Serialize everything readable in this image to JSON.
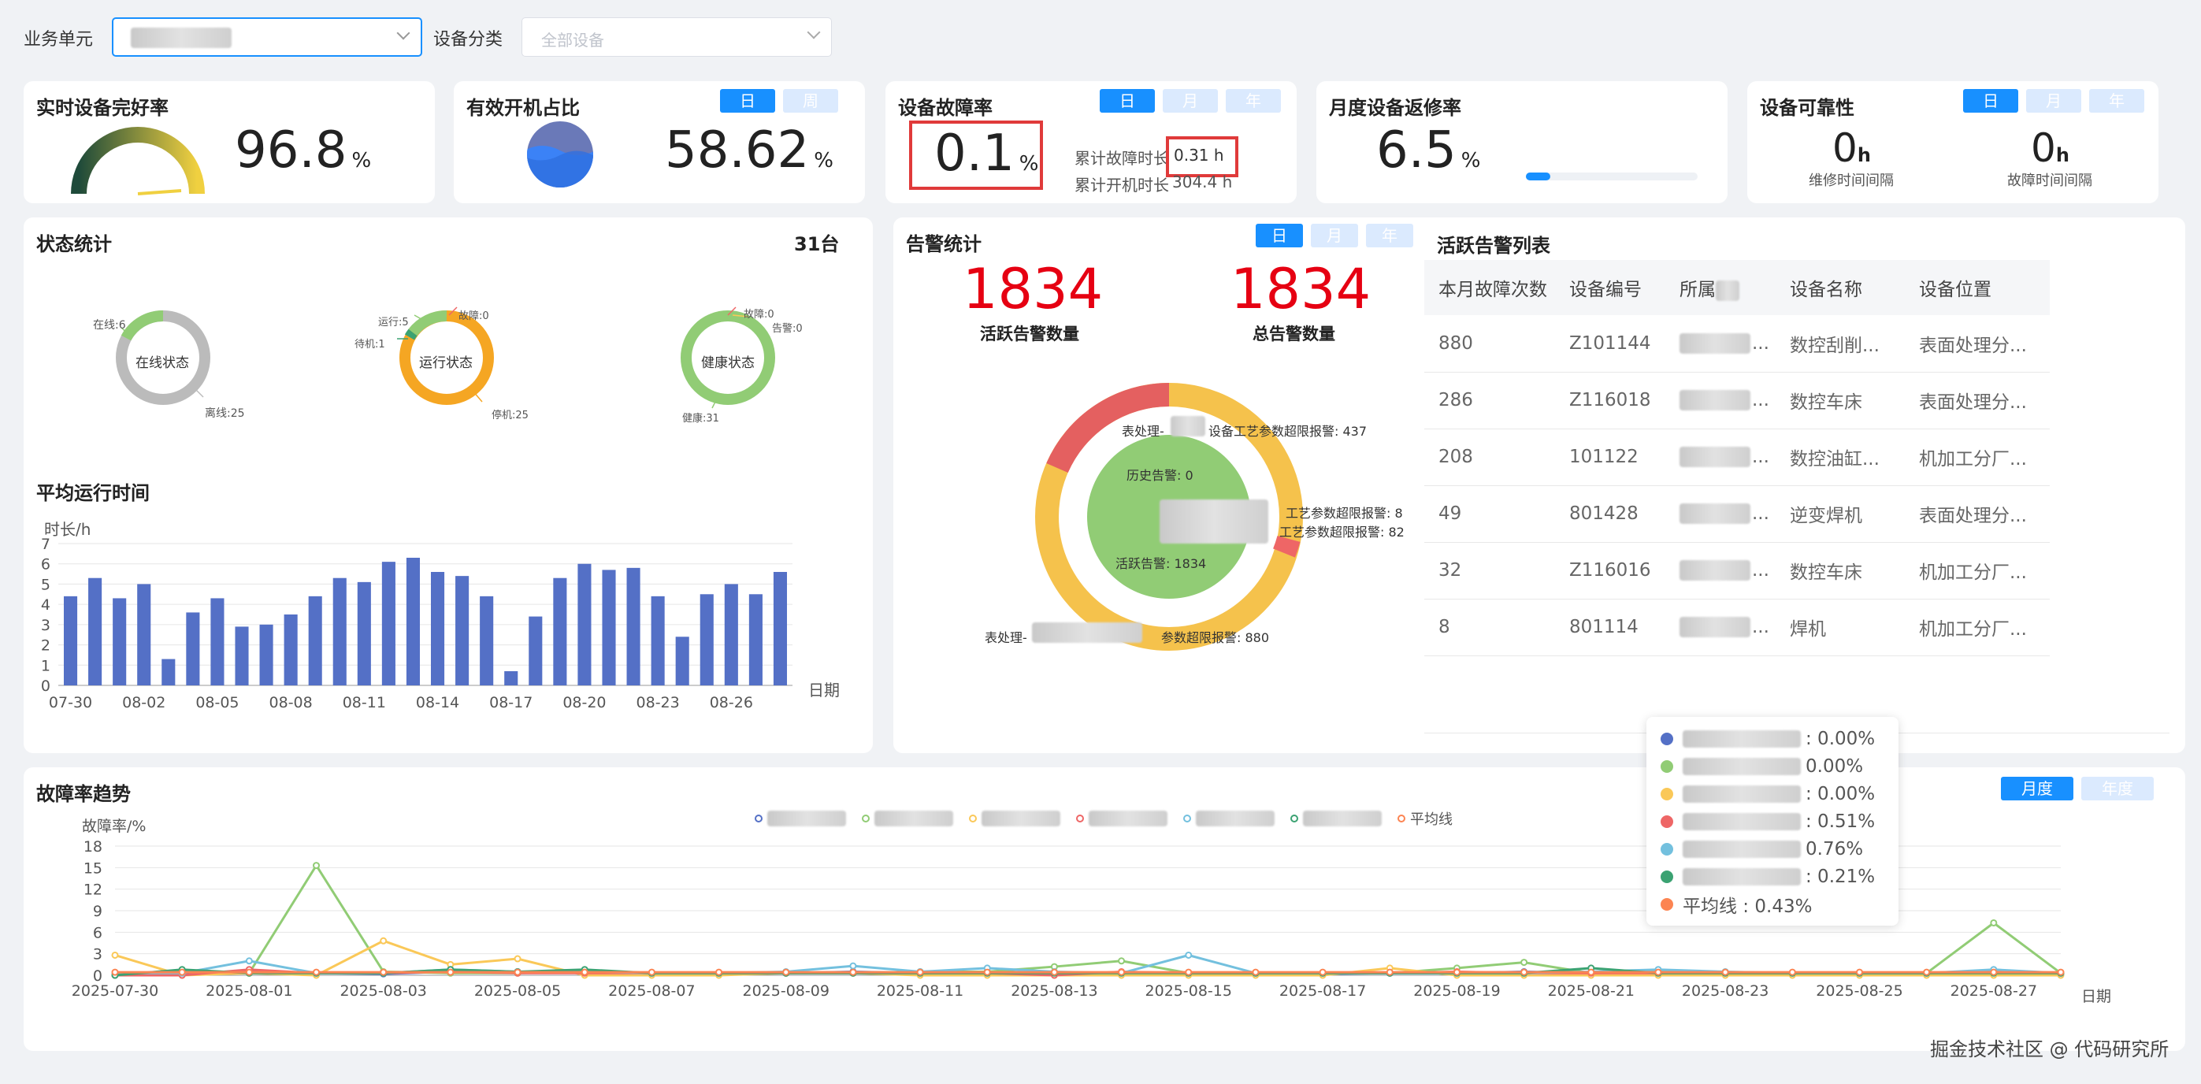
{
  "filters": {
    "unit_label": "业务单元",
    "category_label": "设备分类",
    "category_placeholder": "全部设备"
  },
  "kpi": {
    "intact": {
      "title": "实时设备完好率",
      "value": "96.8",
      "unit": "%",
      "gauge_fraction": 0.968
    },
    "poweron": {
      "title": "有效开机占比",
      "value": "58.62",
      "unit": "%",
      "tabs": [
        "日",
        "周"
      ],
      "fill_fraction": 0.5862
    },
    "fault": {
      "title": "设备故障率",
      "value": "0.1",
      "unit": "%",
      "tabs": [
        "日",
        "月",
        "年"
      ],
      "fault_time_label": "累计故障时长",
      "fault_time_value": "0.31 h",
      "on_time_label": "累计开机时长",
      "on_time_value": "304.4 h"
    },
    "repair": {
      "title": "月度设备返修率",
      "value": "6.5",
      "unit": "%",
      "progress_fraction": 0.065
    },
    "reliability": {
      "title": "设备可靠性",
      "tabs": [
        "日",
        "月",
        "年"
      ],
      "mttr_value": "0",
      "mttr_unit": "h",
      "mttr_label": "维修时间间隔",
      "mtbf_value": "0",
      "mtbf_unit": "h",
      "mtbf_label": "故障时间间隔"
    }
  },
  "status": {
    "title": "状态统计",
    "count": "31台",
    "donut1": {
      "center": "在线状态",
      "online": "在线:6",
      "offline": "离线:25"
    },
    "donut2": {
      "center": "运行状态",
      "running": "运行:5",
      "standby": "待机:1",
      "fault": "故障:0",
      "stopped": "停机:25"
    },
    "donut3": {
      "center": "健康状态",
      "fault": "故障:0",
      "alarm": "告警:0",
      "healthy": "健康:31"
    }
  },
  "avg_runtime": {
    "title": "平均运行时间",
    "ylabel": "时长/h",
    "xlabel": "日期"
  },
  "alarm": {
    "title": "告警统计",
    "tabs": [
      "日",
      "月",
      "年"
    ],
    "active_value": "1834",
    "active_label": "活跃告警数量",
    "total_value": "1834",
    "total_label": "总告警数量",
    "pie_labels": {
      "a": "表处理-",
      "a2": "设备工艺参数超限报警: 437",
      "b": "工艺参数超限报警: 8",
      "c": "工艺参数超限报警: 82",
      "d": "表处理-",
      "d2": "参数超限报警: 880",
      "hist": "历史告警: 0",
      "active": "活跃告警: 1834"
    }
  },
  "active_alarm_list": {
    "title": "活跃告警列表",
    "headers": [
      "本月故障次数",
      "设备编号",
      "所属",
      "设备名称",
      "设备位置"
    ],
    "rows": [
      [
        "880",
        "Z101144",
        "",
        "数控刮削...",
        "表面处理分..."
      ],
      [
        "286",
        "Z116018",
        "",
        "数控车床",
        "表面处理分..."
      ],
      [
        "208",
        "101122",
        "",
        "数控油缸...",
        "机加工分厂..."
      ],
      [
        "49",
        "801428",
        "",
        "逆变焊机",
        "表面处理分..."
      ],
      [
        "32",
        "Z116016",
        "",
        "数控车床",
        "机加工分厂..."
      ],
      [
        "8",
        "801114",
        "",
        "焊机",
        "机加工分厂..."
      ]
    ]
  },
  "trend": {
    "title": "故障率趋势",
    "tabs": [
      "月度",
      "年度"
    ],
    "ylabel": "故障率/%",
    "xlabel": "日期",
    "avg_legend": "平均线",
    "tooltip": [
      {
        "color": "#5470c6",
        "text": ": 0.00%"
      },
      {
        "color": "#91cc75",
        "text": "0.00%"
      },
      {
        "color": "#fac858",
        "text": ": 0.00%"
      },
      {
        "color": "#ee6666",
        "text": ": 0.51%"
      },
      {
        "color": "#73c0de",
        "text": "0.76%"
      },
      {
        "color": "#3ba272",
        "text": ": 0.21%"
      },
      {
        "color": "#fc8452",
        "text": "平均线 : 0.43%"
      }
    ]
  },
  "watermark": "掘金技术社区 @ 代码研究所",
  "chart_data": [
    {
      "type": "bar",
      "title": "平均运行时间",
      "ylabel": "时长/h",
      "xlabel": "日期",
      "ylim": [
        0,
        7
      ],
      "categories": [
        "07-30",
        "07-31",
        "08-01",
        "08-02",
        "08-03",
        "08-04",
        "08-05",
        "08-06",
        "08-07",
        "08-08",
        "08-09",
        "08-10",
        "08-11",
        "08-12",
        "08-13",
        "08-14",
        "08-15",
        "08-16",
        "08-17",
        "08-18",
        "08-19",
        "08-20",
        "08-21",
        "08-22",
        "08-23",
        "08-24",
        "08-25",
        "08-26",
        "08-27",
        "08-28"
      ],
      "tick_labels": [
        "07-30",
        "08-02",
        "08-05",
        "08-08",
        "08-11",
        "08-14",
        "08-17",
        "08-20",
        "08-23",
        "08-26"
      ],
      "values": [
        4.4,
        5.3,
        4.3,
        5.0,
        1.3,
        3.6,
        4.3,
        2.9,
        3.0,
        3.5,
        4.4,
        5.3,
        5.1,
        6.1,
        6.3,
        5.6,
        5.4,
        4.4,
        0.7,
        3.4,
        5.3,
        6.0,
        5.7,
        5.8,
        4.4,
        2.4,
        4.5,
        5.0,
        4.5,
        5.6
      ],
      "color": "#5470c6"
    },
    {
      "type": "line",
      "title": "故障率趋势",
      "ylabel": "故障率/%",
      "xlabel": "日期",
      "ylim": [
        0,
        18
      ],
      "yticks": [
        0,
        3,
        6,
        9,
        12,
        15,
        18
      ],
      "tick_labels": [
        "2025-07-30",
        "2025-08-01",
        "2025-08-03",
        "2025-08-05",
        "2025-08-07",
        "2025-08-09",
        "2025-08-11",
        "2025-08-13",
        "2025-08-15",
        "2025-08-17",
        "2025-08-19",
        "2025-08-21",
        "2025-08-23",
        "2025-08-25",
        "2025-08-27"
      ],
      "points": 30,
      "series": [
        {
          "name": "",
          "color": "#5470c6",
          "values": [
            0,
            0.3,
            0.5,
            0.3,
            0.2,
            0.5,
            0.5,
            0.3,
            0.2,
            0.3,
            0.3,
            0.5,
            0.3,
            0.5,
            0.3,
            0.3,
            0.3,
            0.3,
            0.2,
            0.3,
            0.3,
            0.5,
            0.3,
            0.3,
            0.2,
            0.2,
            0.2,
            0.2,
            0.3,
            0.3
          ]
        },
        {
          "name": "",
          "color": "#91cc75",
          "values": [
            0,
            0.5,
            0.3,
            15.3,
            0.5,
            0.3,
            0.3,
            0.5,
            0.3,
            0.3,
            0.3,
            0.3,
            0.5,
            0.5,
            1.2,
            2.0,
            0.3,
            0.3,
            0.3,
            0.3,
            1.0,
            1.8,
            0.3,
            0.5,
            0.3,
            0.3,
            0.3,
            0.3,
            7.3,
            0.3
          ]
        },
        {
          "name": "",
          "color": "#fac858",
          "values": [
            2.8,
            0,
            0.3,
            0,
            4.8,
            1.5,
            2.3,
            0,
            0,
            0,
            0.3,
            0.3,
            0,
            0,
            0,
            0,
            0,
            0,
            0,
            1.0,
            0,
            0,
            0,
            0,
            0,
            0,
            0,
            0,
            0,
            0
          ]
        },
        {
          "name": "",
          "color": "#ee6666",
          "values": [
            0,
            0,
            0.8,
            0.3,
            0.3,
            0.5,
            0.3,
            0.3,
            0.3,
            0.3,
            0.3,
            0.3,
            0.3,
            0.3,
            0,
            0.5,
            0.3,
            0.3,
            0.3,
            0.3,
            0.5,
            0.3,
            0.3,
            0.3,
            0.3,
            0.3,
            0.3,
            0.3,
            0.5,
            0.3
          ]
        },
        {
          "name": "",
          "color": "#73c0de",
          "values": [
            0.3,
            0.3,
            2.0,
            0.3,
            0.3,
            0.8,
            0.5,
            0.5,
            0.3,
            0.3,
            0.5,
            1.3,
            0.5,
            1.0,
            0.5,
            0.3,
            2.8,
            0.3,
            0.3,
            0.3,
            0.3,
            0.3,
            0.5,
            0.8,
            0.5,
            0.3,
            0.3,
            0.3,
            0.8,
            0.3
          ]
        },
        {
          "name": "",
          "color": "#3ba272",
          "values": [
            0,
            0.8,
            0.3,
            0.3,
            0.3,
            0.8,
            0.5,
            0.8,
            0.3,
            0.3,
            0.3,
            0.3,
            0.3,
            0.3,
            0.3,
            0.3,
            0.3,
            0.3,
            0.3,
            0.3,
            0.3,
            0.3,
            1.0,
            0.3,
            0.3,
            0.3,
            0.3,
            0.3,
            0.3,
            0.3
          ]
        },
        {
          "name": "平均线",
          "color": "#fc8452",
          "values": [
            0.43,
            0.43,
            0.43,
            0.43,
            0.43,
            0.43,
            0.43,
            0.43,
            0.43,
            0.43,
            0.43,
            0.43,
            0.43,
            0.43,
            0.43,
            0.43,
            0.43,
            0.43,
            0.43,
            0.43,
            0.43,
            0.43,
            0.43,
            0.43,
            0.43,
            0.43,
            0.43,
            0.43,
            0.43,
            0.43
          ]
        }
      ]
    }
  ]
}
